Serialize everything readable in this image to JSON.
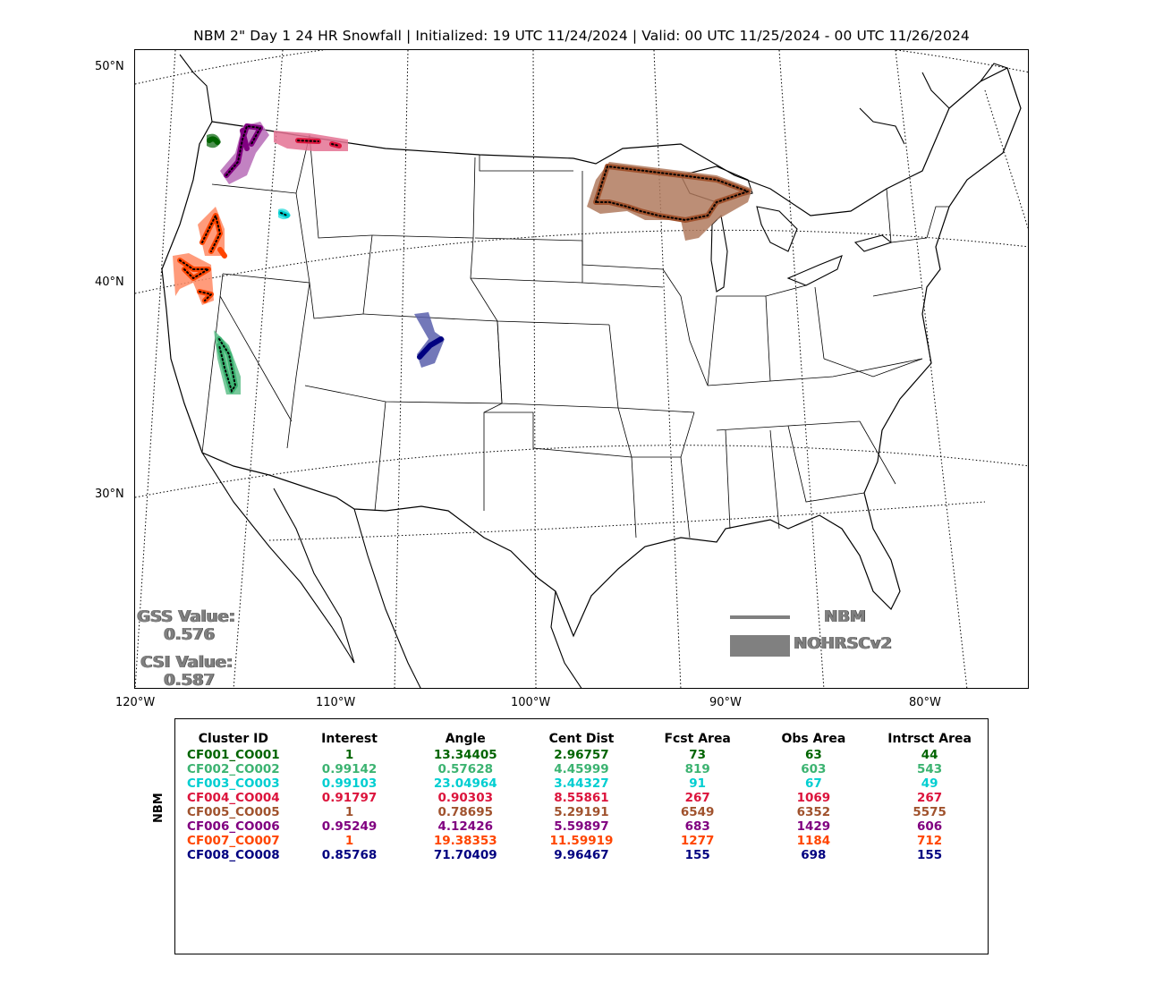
{
  "title": "NBM 2\" Day 1 24 HR Snowfall | Initialized: 19 UTC 11/24/2024 | Valid: 00 UTC 11/25/2024 - 00 UTC 11/26/2024",
  "lat_labels": [
    "50°N",
    "40°N",
    "30°N"
  ],
  "lon_labels": [
    "120°W",
    "110°W",
    "100°W",
    "90°W",
    "80°W"
  ],
  "scores": {
    "gss_label": "GSS Value:",
    "gss_value": "0.576",
    "csi_label": "CSI Value:",
    "csi_value": "0.587"
  },
  "legend": {
    "forecast_label": "NBM",
    "observed_label": "NOHRSCv2",
    "color": "#808080"
  },
  "table": {
    "side_label": "NBM",
    "headers": [
      "Cluster ID",
      "Interest",
      "Angle",
      "Cent Dist",
      "Fcst Area",
      "Obs Area",
      "Intrsct Area"
    ],
    "rows": [
      {
        "cells": [
          "CF001_CO001",
          "1",
          "13.34405",
          "2.96757",
          "73",
          "63",
          "44"
        ],
        "color": "#006400"
      },
      {
        "cells": [
          "CF002_CO002",
          "0.99142",
          "0.57628",
          "4.45999",
          "819",
          "603",
          "543"
        ],
        "color": "#3CB371"
      },
      {
        "cells": [
          "CF003_CO003",
          "0.99103",
          "23.04964",
          "3.44327",
          "91",
          "67",
          "49"
        ],
        "color": "#00CED1"
      },
      {
        "cells": [
          "CF004_CO004",
          "0.91797",
          "0.90303",
          "8.55861",
          "267",
          "1069",
          "267"
        ],
        "color": "#DC143C"
      },
      {
        "cells": [
          "CF005_CO005",
          "1",
          "0.78695",
          "5.29191",
          "6549",
          "6352",
          "5575"
        ],
        "color": "#A0522D"
      },
      {
        "cells": [
          "CF006_CO006",
          "0.95249",
          "4.12426",
          "5.59897",
          "683",
          "1429",
          "606"
        ],
        "color": "#800080"
      },
      {
        "cells": [
          "CF007_CO007",
          "1",
          "19.38353",
          "11.59919",
          "1277",
          "1184",
          "712"
        ],
        "color": "#FF4500"
      },
      {
        "cells": [
          "CF008_CO008",
          "0.85768",
          "71.70409",
          "9.96467",
          "155",
          "698",
          "155"
        ],
        "color": "#000080"
      }
    ]
  }
}
